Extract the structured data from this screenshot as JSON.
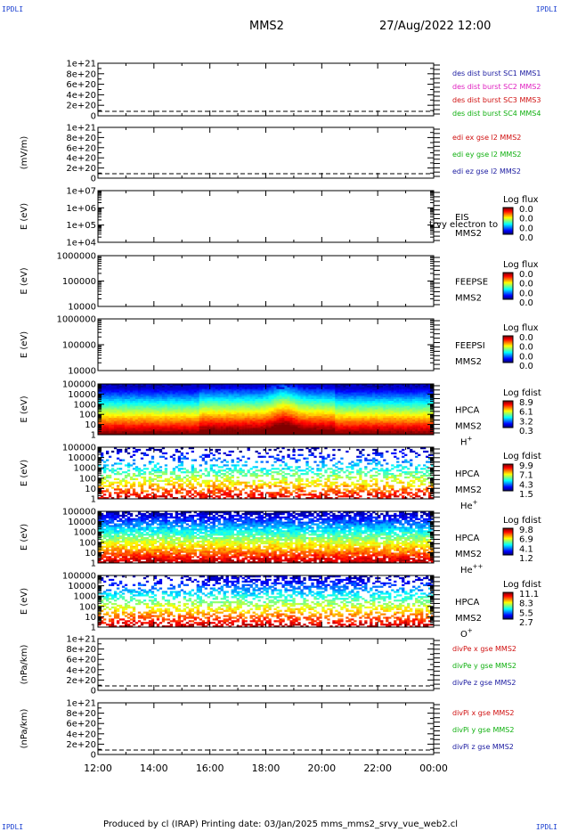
{
  "header": {
    "corner_tl": "IPDLI",
    "corner_tr": "IPDLI",
    "corner_bl": "IPDLI",
    "corner_br": "IPDLI",
    "spacecraft": "MMS2",
    "datetime": "27/Aug/2022 12:00"
  },
  "footer": {
    "text": "Produced by cl (IRAP)   Printing date: 03/Jan/2025   mms_mms2_srvy_vue_web2.cl"
  },
  "time_axis": {
    "ticks": [
      "12:00",
      "14:00",
      "16:00",
      "18:00",
      "20:00",
      "22:00",
      "00:00"
    ]
  },
  "chart_data": [
    {
      "type": "line",
      "ylabel": "",
      "yticks": [
        "1e+21",
        "8e+20",
        "6e+20",
        "4e+20",
        "2e+20",
        "0"
      ],
      "ylim": [
        0,
        1e+21
      ],
      "series": [
        {
          "name": "des dist burst SC1 MMS1",
          "color": "#1a1aa0"
        },
        {
          "name": "des dist burst SC2 MMS2",
          "color": "#e020c0"
        },
        {
          "name": "des dist burst SC3 MMS3",
          "color": "#d01010"
        },
        {
          "name": "des dist burst SC4 MMS4",
          "color": "#10b010"
        }
      ]
    },
    {
      "type": "line",
      "ylabel": "(mV/m)",
      "yticks": [
        "1e+21",
        "8e+20",
        "6e+20",
        "4e+20",
        "2e+20",
        "0"
      ],
      "ylim": [
        0,
        1e+21
      ],
      "series": [
        {
          "name": "edi ex gse l2 MMS2",
          "color": "#d01010"
        },
        {
          "name": "edi ey gse l2 MMS2",
          "color": "#10b010"
        },
        {
          "name": "edi ez gse l2 MMS2",
          "color": "#1a1aa0"
        }
      ]
    },
    {
      "type": "heatmap",
      "ylabel": "E (eV)",
      "yticks": [
        "1e+07",
        "1e+06",
        "1e+05",
        "1e+04"
      ],
      "ylog": true,
      "ylim": [
        10000.0,
        10000000.0
      ],
      "instrument": [
        "EIS",
        "MMS2"
      ],
      "overlay_text": "trvy electron to",
      "colorbar": {
        "title": "Log flux",
        "ticks": [
          "0.0",
          "0.0",
          "0.0",
          "0.0"
        ]
      }
    },
    {
      "type": "heatmap",
      "ylabel": "E (eV)",
      "yticks": [
        "1000000",
        "100000",
        "10000"
      ],
      "ylog": true,
      "ylim": [
        10000,
        1000000
      ],
      "instrument": [
        "FEEPSE",
        "MMS2"
      ],
      "colorbar": {
        "title": "Log flux",
        "ticks": [
          "0.0",
          "0.0",
          "0.0",
          "0.0"
        ]
      }
    },
    {
      "type": "heatmap",
      "ylabel": "E (eV)",
      "yticks": [
        "1000000",
        "100000",
        "10000"
      ],
      "ylog": true,
      "ylim": [
        10000,
        1000000
      ],
      "instrument": [
        "FEEPSI",
        "MMS2"
      ],
      "colorbar": {
        "title": "Log flux",
        "ticks": [
          "0.0",
          "0.0",
          "0.0",
          "0.0"
        ]
      }
    },
    {
      "type": "heatmap",
      "ylabel": "E (eV)",
      "yticks": [
        "100000",
        "10000",
        "1000",
        "100",
        "10",
        "1"
      ],
      "ylog": true,
      "ylim": [
        1,
        100000
      ],
      "instrument": [
        "HPCA",
        "MMS2"
      ],
      "species": "H",
      "species_sup": "+",
      "colorbar": {
        "title": "Log fdist",
        "ticks": [
          "8.9",
          "6.1",
          "3.2",
          "0.3"
        ]
      }
    },
    {
      "type": "heatmap",
      "ylabel": "E (eV)",
      "yticks": [
        "100000",
        "10000",
        "1000",
        "100",
        "10",
        "1"
      ],
      "ylog": true,
      "ylim": [
        1,
        100000
      ],
      "instrument": [
        "HPCA",
        "MMS2"
      ],
      "species": "He",
      "species_sup": "+",
      "colorbar": {
        "title": "Log fdist",
        "ticks": [
          "9.9",
          "7.1",
          "4.3",
          "1.5"
        ]
      }
    },
    {
      "type": "heatmap",
      "ylabel": "E (eV)",
      "yticks": [
        "100000",
        "10000",
        "1000",
        "100",
        "10",
        "1"
      ],
      "ylog": true,
      "ylim": [
        1,
        100000
      ],
      "instrument": [
        "HPCA",
        "MMS2"
      ],
      "species": "He",
      "species_sup": "++",
      "colorbar": {
        "title": "Log fdist",
        "ticks": [
          "9.8",
          "6.9",
          "4.1",
          "1.2"
        ]
      }
    },
    {
      "type": "heatmap",
      "ylabel": "E (eV)",
      "yticks": [
        "100000",
        "10000",
        "1000",
        "100",
        "10",
        "1"
      ],
      "ylog": true,
      "ylim": [
        1,
        100000
      ],
      "instrument": [
        "HPCA",
        "MMS2"
      ],
      "species": "O",
      "species_sup": "+",
      "colorbar": {
        "title": "Log fdist",
        "ticks": [
          "11.1",
          "8.3",
          "5.5",
          "2.7"
        ]
      }
    },
    {
      "type": "line",
      "ylabel": "(nPa/km)",
      "yticks": [
        "1e+21",
        "8e+20",
        "6e+20",
        "4e+20",
        "2e+20",
        "0"
      ],
      "ylim": [
        0,
        1e+21
      ],
      "series": [
        {
          "name": "divPe x gse MMS2",
          "color": "#d01010"
        },
        {
          "name": "divPe y gse MMS2",
          "color": "#10b010"
        },
        {
          "name": "divPe z gse MMS2",
          "color": "#1a1aa0"
        }
      ]
    },
    {
      "type": "line",
      "ylabel": "(nPa/km)",
      "yticks": [
        "1e+21",
        "8e+20",
        "6e+20",
        "4e+20",
        "2e+20",
        "0"
      ],
      "ylim": [
        0,
        1e+21
      ],
      "series": [
        {
          "name": "divPi x gse MMS2",
          "color": "#d01010"
        },
        {
          "name": "divPi y gse MMS2",
          "color": "#10b010"
        },
        {
          "name": "divPi z gse MMS2",
          "color": "#1a1aa0"
        }
      ]
    }
  ]
}
